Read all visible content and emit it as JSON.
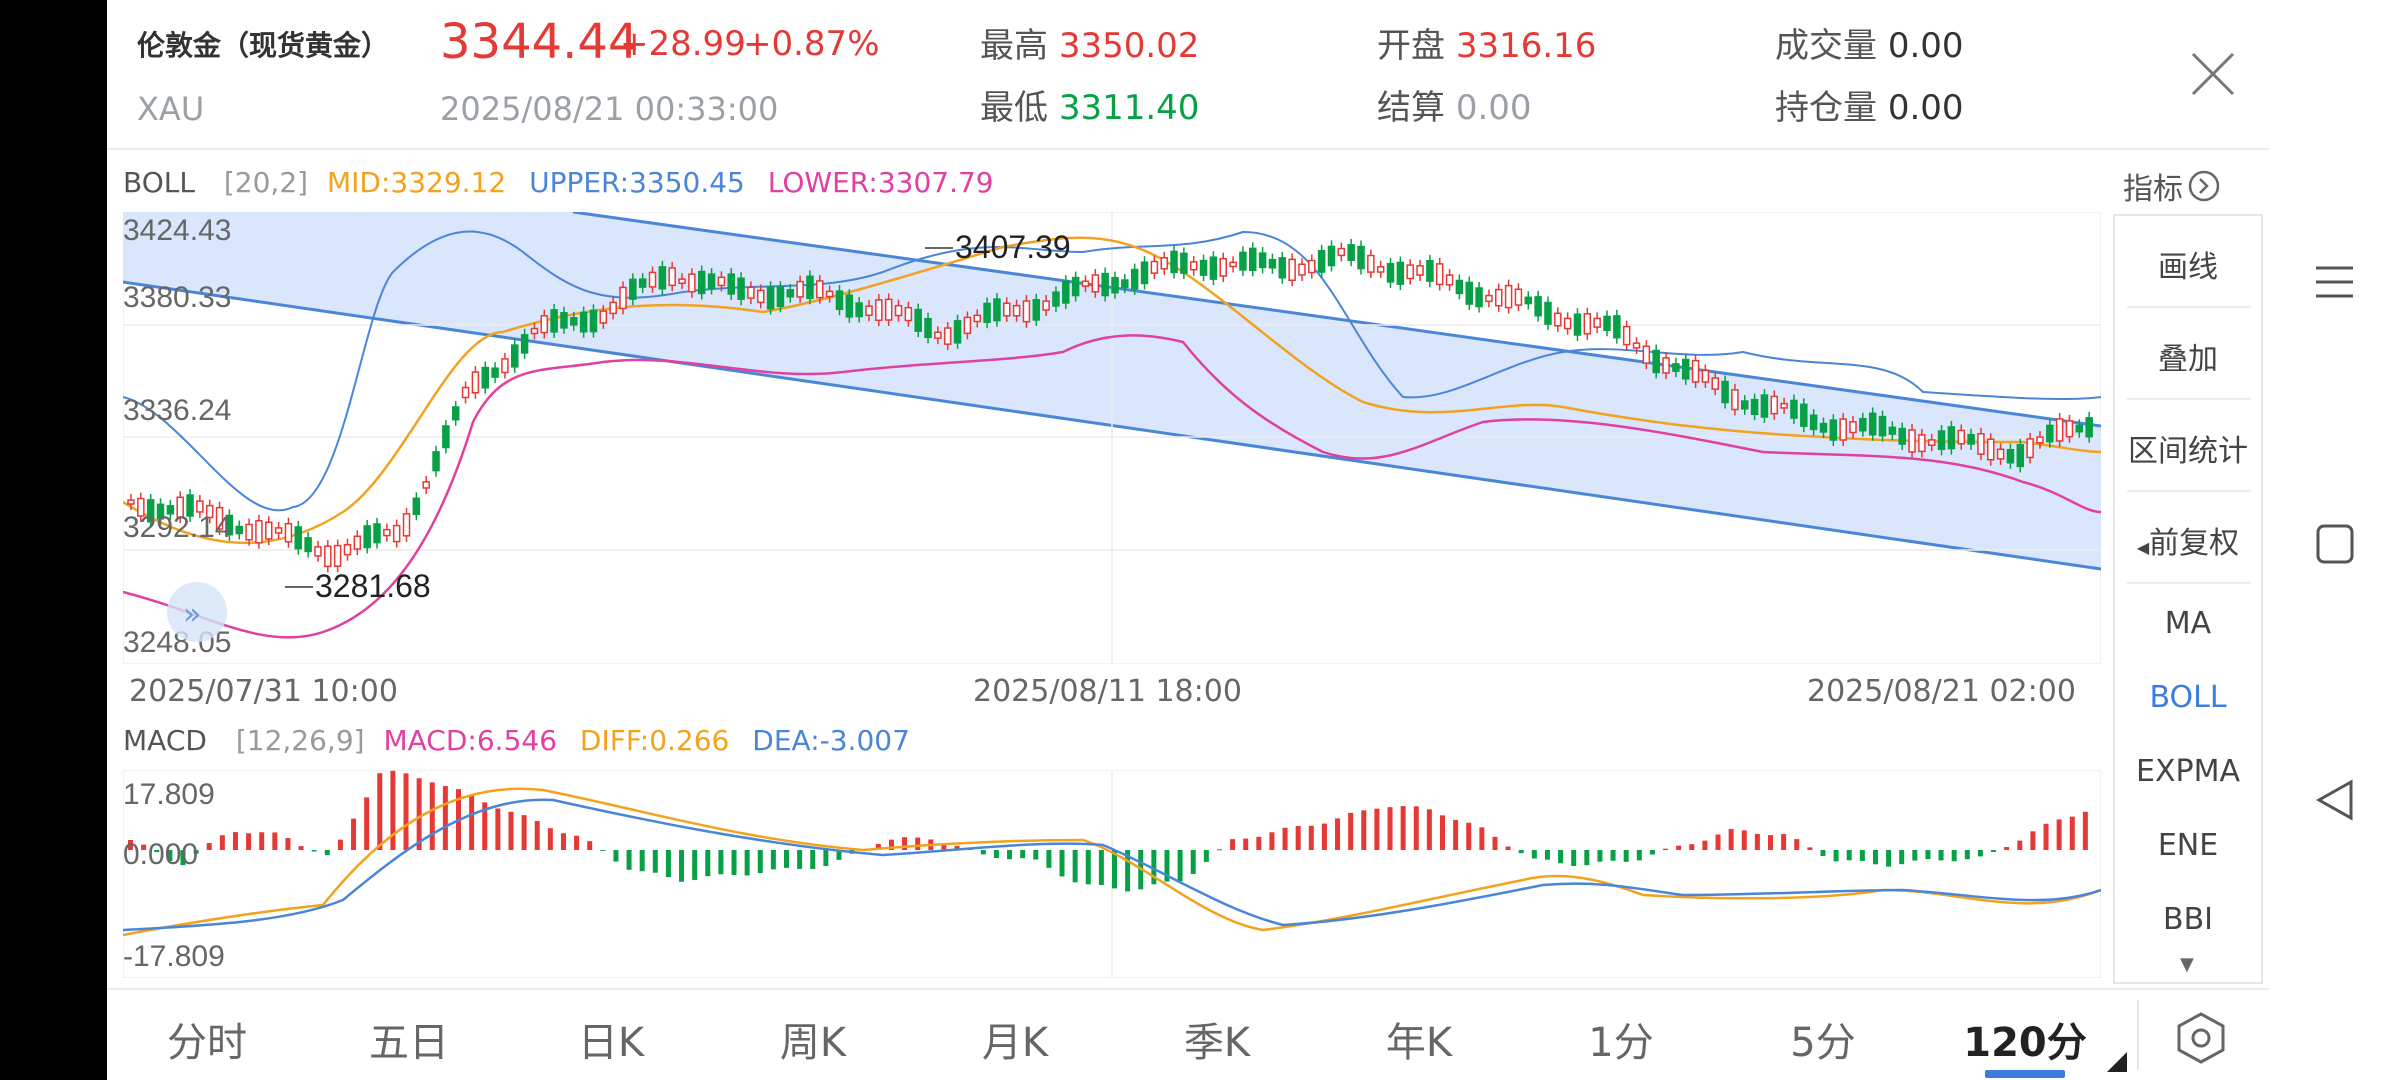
{
  "header": {
    "name": "伦敦金（现货黄金）",
    "code": "XAU",
    "price": "3344.44",
    "change": "+28.99",
    "change_pct": "+0.87%",
    "datetime": "2025/08/21 00:33:00",
    "high_label": "最高",
    "high": "3350.02",
    "low_label": "最低",
    "low": "3311.40",
    "open_label": "开盘",
    "open": "3316.16",
    "settle_label": "结算",
    "settle": "0.00",
    "volume_label": "成交量",
    "volume": "0.00",
    "oi_label": "持仓量",
    "oi": "0.00"
  },
  "boll": {
    "name": "BOLL",
    "params": "[20,2]",
    "mid": "MID:3329.12",
    "upper": "UPPER:3350.45",
    "lower": "LOWER:3307.79",
    "colors": {
      "mid": "#f2a21f",
      "upper": "#4a86d8",
      "lower": "#e040a0"
    }
  },
  "indicator_button": "指标",
  "main_chart": {
    "y_labels": [
      "3424.43",
      "3380.33",
      "3336.24",
      "3292.14",
      "3248.05"
    ],
    "max_marker": "3407.39",
    "min_marker": "3281.68",
    "x_labels": [
      "2025/07/31 10:00",
      "2025/08/11 18:00",
      "2025/08/21 02:00"
    ]
  },
  "macd": {
    "name": "MACD",
    "params": "[12,26,9]",
    "macd": "MACD:6.546",
    "diff": "DIFF:0.266",
    "dea": "DEA:-3.007",
    "y_labels": [
      "17.809",
      "0.000",
      "-17.809"
    ],
    "colors": {
      "macd": "#e040a0",
      "diff": "#f2a21f",
      "dea": "#4a86d8"
    }
  },
  "side_panel": {
    "tools": [
      "画线",
      "叠加",
      "区间统计",
      "前复权"
    ],
    "indicators": [
      "MA",
      "BOLL",
      "EXPMA",
      "ENE",
      "BBI"
    ],
    "active_indicator": "BOLL"
  },
  "period_tabs": [
    "分时",
    "五日",
    "日K",
    "周K",
    "月K",
    "季K",
    "年K",
    "1分",
    "5分",
    "120分"
  ],
  "active_period": "120分",
  "chart_data": {
    "type": "candlestick",
    "x_range": [
      "2025/07/31 10:00",
      "2025/08/21 02:00"
    ],
    "ylim": [
      3248.05,
      3424.43
    ],
    "period_high": 3407.39,
    "period_low": 3281.68,
    "last_close": 3344.44,
    "macd_ylim": [
      -17.809,
      17.809
    ]
  },
  "theme": {
    "up": "#e53935",
    "down": "#07a046",
    "channel": "#d9e6fb",
    "channel_line": "#4a86d8"
  }
}
